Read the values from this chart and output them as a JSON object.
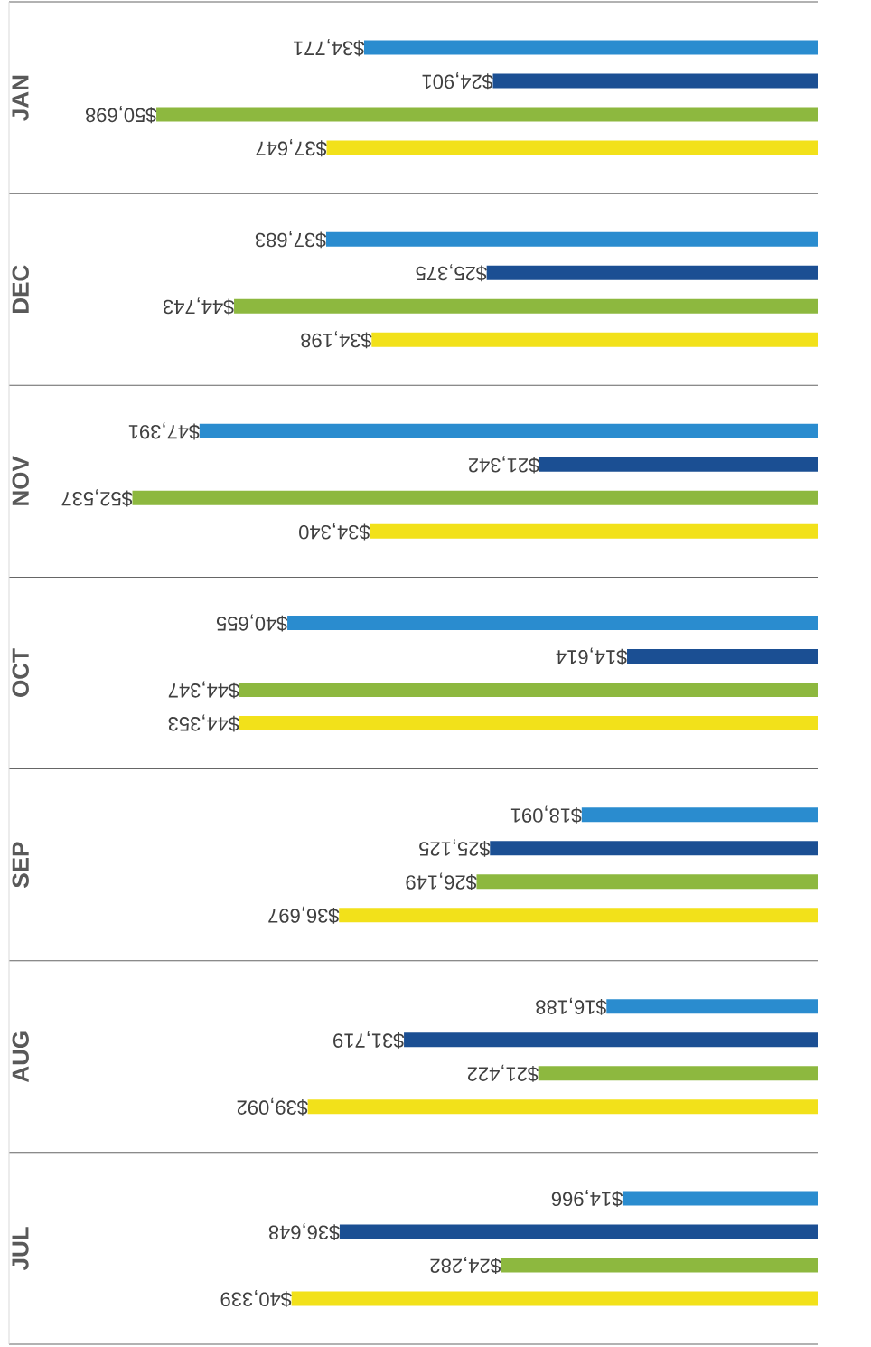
{
  "chart_data": {
    "type": "bar",
    "orientation": "horizontal",
    "categories": [
      "JAN",
      "DEC",
      "NOV",
      "OCT",
      "SEP",
      "AUG",
      "JUL"
    ],
    "series": [
      {
        "color": "#2a8ccf",
        "values": [
          34771,
          37683,
          47391,
          40655,
          18091,
          16188,
          14966
        ],
        "value_labels": [
          "$34,771",
          "$37,683",
          "$47,391",
          "$40,655",
          "$18,091",
          "$16,188",
          "$14,966"
        ]
      },
      {
        "color": "#1b4f93",
        "values": [
          24901,
          25375,
          21342,
          14614,
          25125,
          31719,
          36648
        ],
        "value_labels": [
          "$24,901",
          "$25,375",
          "$21,342",
          "$14,614",
          "$25,125",
          "$31,719",
          "$36,648"
        ]
      },
      {
        "color": "#8db83f",
        "values": [
          50698,
          44743,
          52537,
          44347,
          26149,
          21422,
          24282
        ],
        "value_labels": [
          "$50,698",
          "$44,743",
          "$52,537",
          "$44,347",
          "$26,149",
          "$21,422",
          "$24,282"
        ]
      },
      {
        "color": "#f2e11a",
        "values": [
          37647,
          34198,
          34340,
          44353,
          36697,
          39092,
          40339
        ],
        "value_labels": [
          "$37,647",
          "$34,198",
          "$34,340",
          "$44,353",
          "$36,697",
          "$39,092",
          "$40,339"
        ]
      }
    ]
  }
}
